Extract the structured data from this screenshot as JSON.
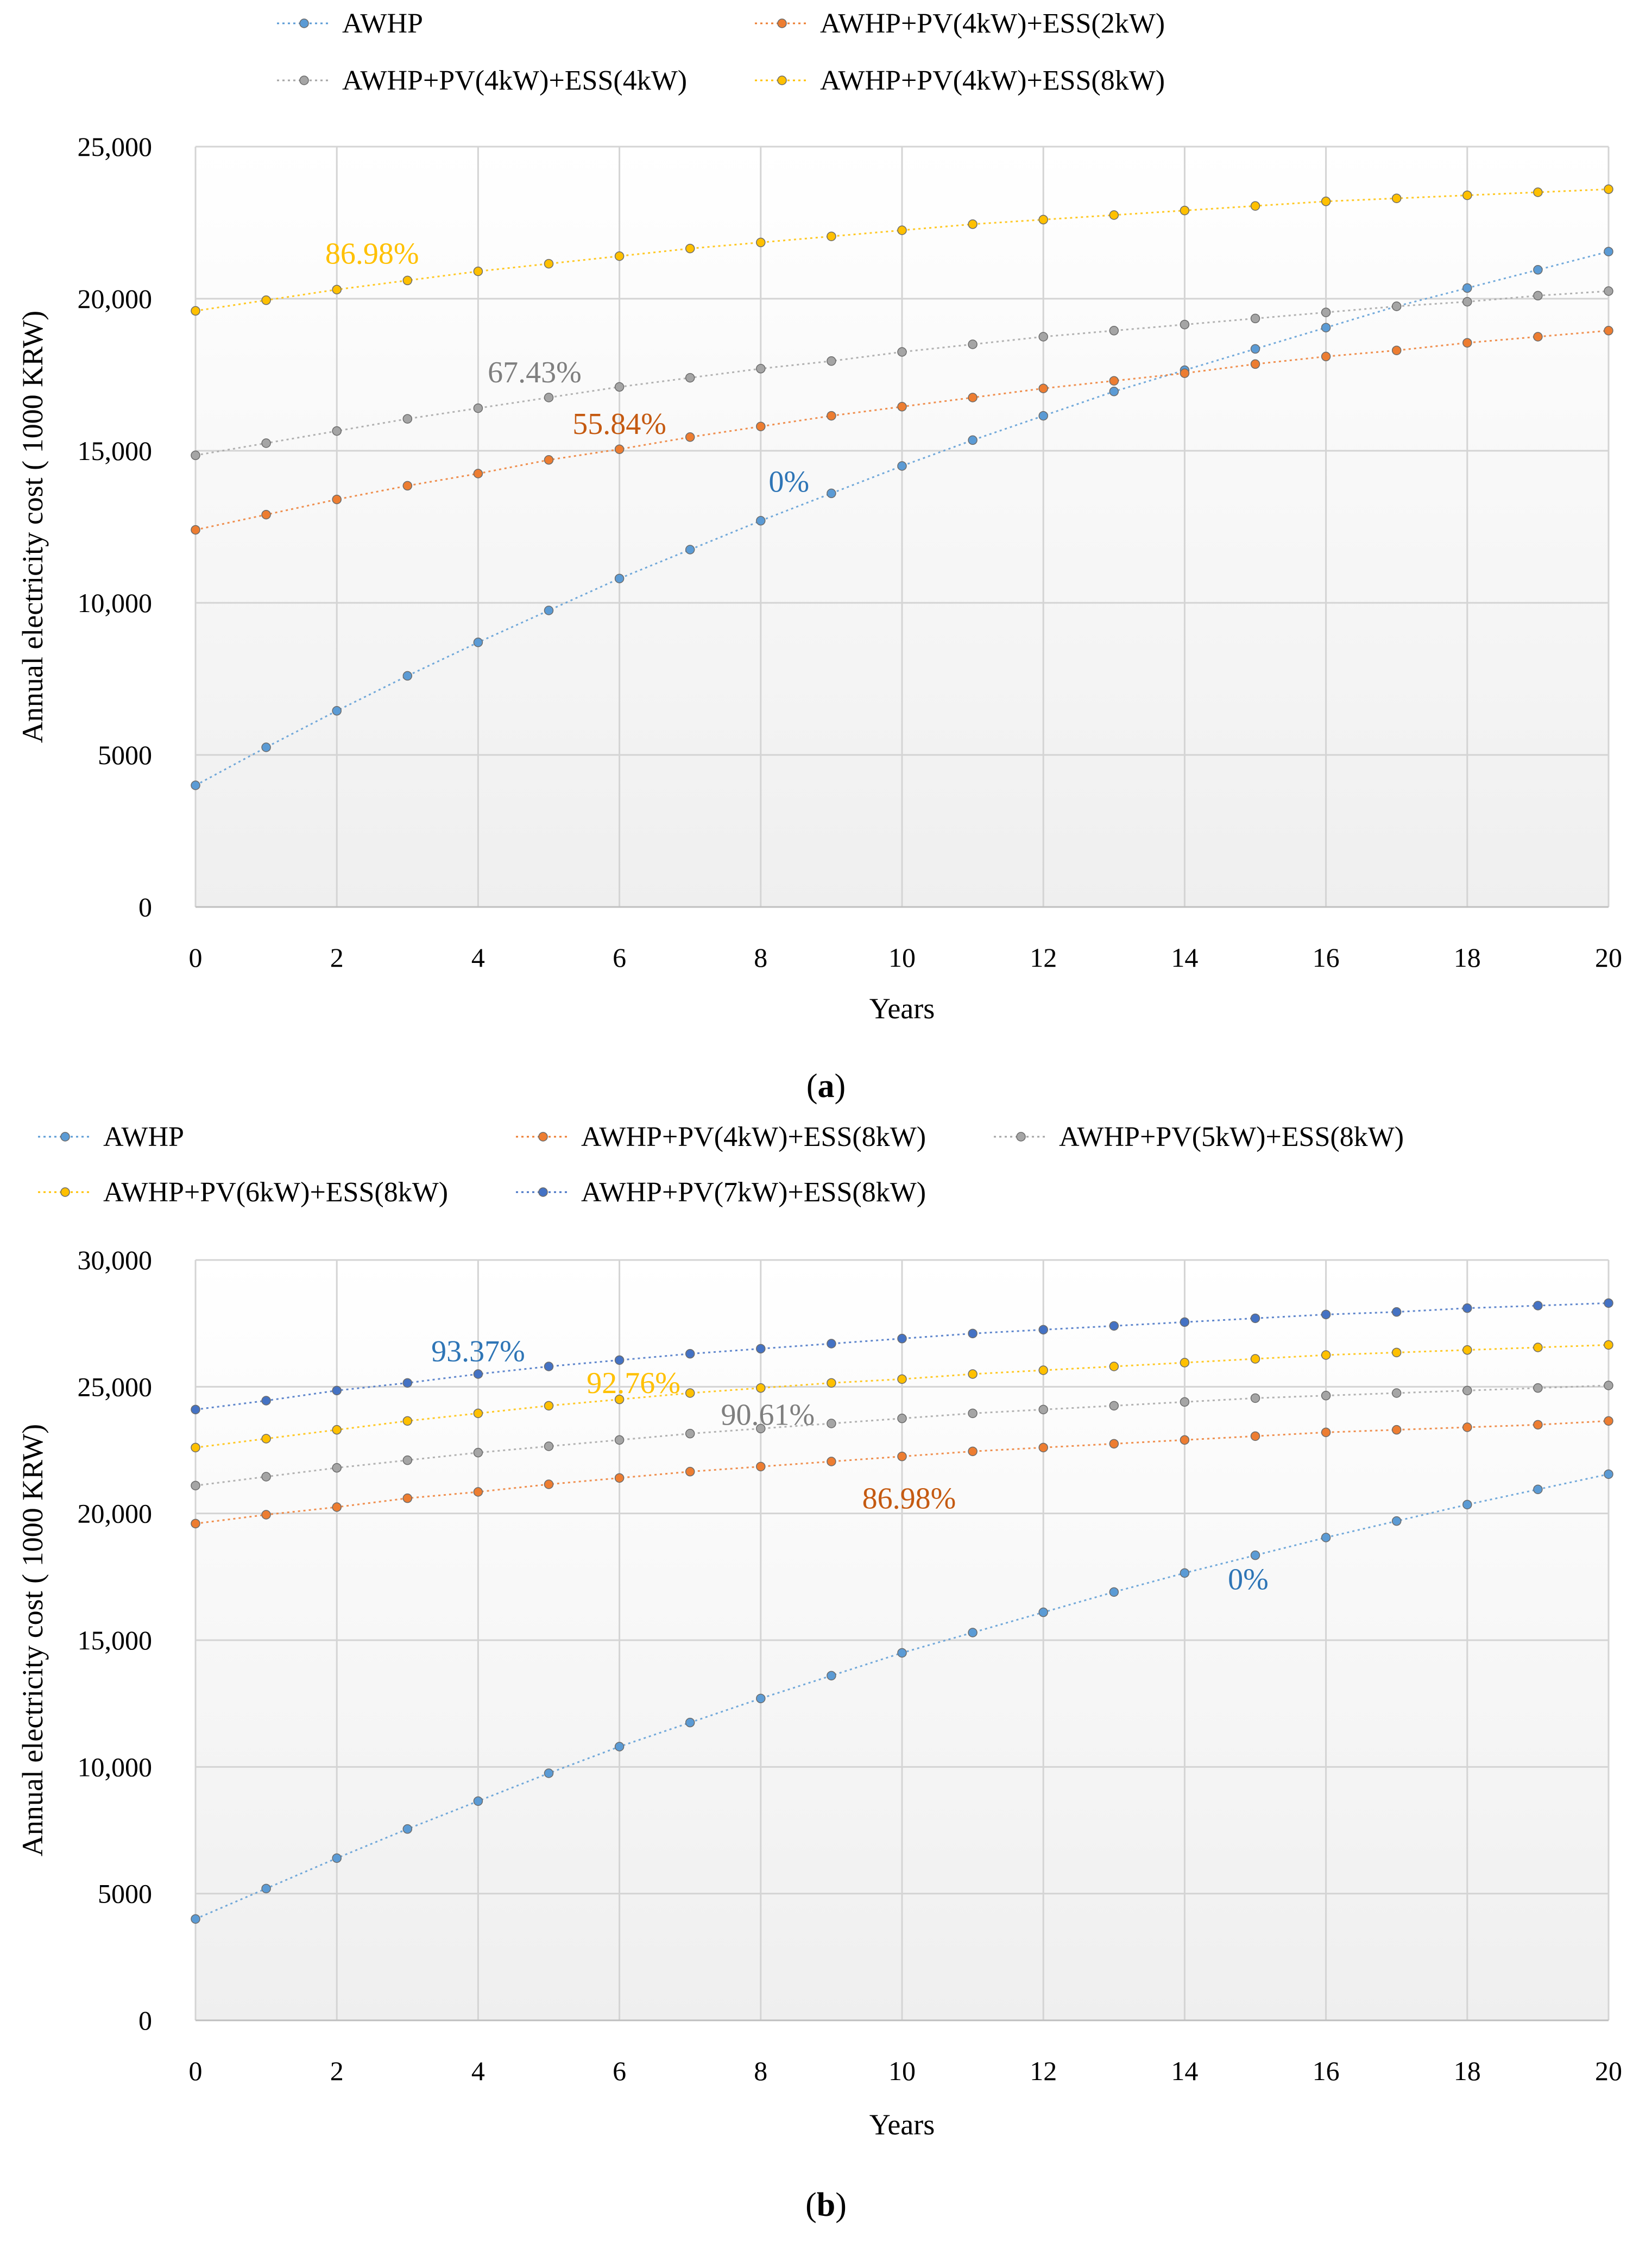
{
  "chart_data": [
    {
      "type": "line",
      "panel": "a",
      "caption_letter": "a",
      "xlabel": "Years",
      "ylabel": "Annual electricity cost ( 1000 KRW)",
      "xlim": [
        0,
        20
      ],
      "ylim": [
        0,
        25000
      ],
      "x_ticks": [
        0,
        2,
        4,
        6,
        8,
        10,
        12,
        14,
        16,
        18,
        20
      ],
      "y_ticks": [
        0,
        5000,
        10000,
        15000,
        20000,
        25000
      ],
      "y_tick_labels": [
        "0",
        "5000",
        "10,000",
        "15,000",
        "20,000",
        "25,000"
      ],
      "grid": true,
      "legend_position": "top",
      "x": [
        0,
        1,
        2,
        3,
        4,
        5,
        6,
        7,
        8,
        9,
        10,
        11,
        12,
        13,
        14,
        15,
        16,
        17,
        18,
        19,
        20
      ],
      "series": [
        {
          "name": "AWHP",
          "color": "#5B9BD5",
          "values": [
            4000,
            5250,
            6450,
            7600,
            8700,
            9750,
            10800,
            11750,
            12700,
            13600,
            14500,
            15350,
            16150,
            16950,
            17650,
            18350,
            19050,
            19750,
            20350,
            20950,
            21550
          ]
        },
        {
          "name": "AWHP+PV(4kW)+ESS(2kW)",
          "color": "#ED7D31",
          "values": [
            12400,
            12900,
            13400,
            13850,
            14250,
            14700,
            15050,
            15450,
            15800,
            16150,
            16450,
            16750,
            17050,
            17300,
            17550,
            17850,
            18100,
            18300,
            18550,
            18750,
            18950
          ]
        },
        {
          "name": "AWHP+PV(4kW)+ESS(4kW)",
          "color": "#A5A5A5",
          "values": [
            14850,
            15250,
            15650,
            16050,
            16400,
            16750,
            17100,
            17400,
            17700,
            17950,
            18250,
            18500,
            18750,
            18950,
            19150,
            19350,
            19550,
            19750,
            19900,
            20100,
            20250
          ]
        },
        {
          "name": "AWHP+PV(4kW)+ESS(8kW)",
          "color": "#FFC000",
          "values": [
            19600,
            19950,
            20300,
            20600,
            20900,
            21150,
            21400,
            21650,
            21850,
            22050,
            22250,
            22450,
            22600,
            22750,
            22900,
            23050,
            23200,
            23300,
            23400,
            23500,
            23600
          ]
        }
      ],
      "annotations": [
        {
          "text": "86.98%",
          "color": "#FFC000",
          "x": 2.5,
          "y": 21150
        },
        {
          "text": "67.43%",
          "color": "#7F7F7F",
          "x": 4.8,
          "y": 17250
        },
        {
          "text": "55.84%",
          "color": "#C55A11",
          "x": 6.0,
          "y": 15550
        },
        {
          "text": "0%",
          "color": "#2E75B6",
          "x": 8.4,
          "y": 13650
        }
      ]
    },
    {
      "type": "line",
      "panel": "b",
      "caption_letter": "b",
      "xlabel": "Years",
      "ylabel": "Annual electricity cost ( 1000 KRW)",
      "xlim": [
        0,
        20
      ],
      "ylim": [
        0,
        30000
      ],
      "x_ticks": [
        0,
        2,
        4,
        6,
        8,
        10,
        12,
        14,
        16,
        18,
        20
      ],
      "y_ticks": [
        0,
        5000,
        10000,
        15000,
        20000,
        25000,
        30000
      ],
      "y_tick_labels": [
        "0",
        "5000",
        "10,000",
        "15,000",
        "20,000",
        "25,000",
        "30,000"
      ],
      "grid": true,
      "legend_position": "top",
      "x": [
        0,
        1,
        2,
        3,
        4,
        5,
        6,
        7,
        8,
        9,
        10,
        11,
        12,
        13,
        14,
        15,
        16,
        17,
        18,
        19,
        20
      ],
      "series": [
        {
          "name": "AWHP",
          "color": "#5B9BD5",
          "values": [
            4000,
            5200,
            6400,
            7550,
            8650,
            9750,
            10800,
            11750,
            12700,
            13600,
            14500,
            15300,
            16100,
            16900,
            17650,
            18350,
            19050,
            19700,
            20350,
            20950,
            21550
          ]
        },
        {
          "name": "AWHP+PV(4kW)+ESS(8kW)",
          "color": "#ED7D31",
          "values": [
            19600,
            19950,
            20250,
            20600,
            20850,
            21150,
            21400,
            21650,
            21850,
            22050,
            22250,
            22450,
            22600,
            22750,
            22900,
            23050,
            23200,
            23300,
            23400,
            23500,
            23650
          ]
        },
        {
          "name": "AWHP+PV(5kW)+ESS(8kW)",
          "color": "#A5A5A5",
          "values": [
            21100,
            21450,
            21800,
            22100,
            22400,
            22650,
            22900,
            23150,
            23350,
            23550,
            23750,
            23950,
            24100,
            24250,
            24400,
            24550,
            24650,
            24750,
            24850,
            24950,
            25050
          ]
        },
        {
          "name": "AWHP+PV(6kW)+ESS(8kW)",
          "color": "#FFC000",
          "values": [
            22600,
            22950,
            23300,
            23650,
            23950,
            24250,
            24500,
            24750,
            24950,
            25150,
            25300,
            25500,
            25650,
            25800,
            25950,
            26100,
            26250,
            26350,
            26450,
            26550,
            26650
          ]
        },
        {
          "name": "AWHP+PV(7kW)+ESS(8kW)",
          "color": "#4472C4",
          "values": [
            24100,
            24450,
            24850,
            25150,
            25500,
            25800,
            26050,
            26300,
            26500,
            26700,
            26900,
            27100,
            27250,
            27400,
            27550,
            27700,
            27850,
            27950,
            28100,
            28200,
            28300
          ]
        }
      ],
      "annotations": [
        {
          "text": "93.37%",
          "color": "#2E75B6",
          "x": 4.0,
          "y": 26000
        },
        {
          "text": "92.76%",
          "color": "#FFC000",
          "x": 6.2,
          "y": 24750
        },
        {
          "text": "90.61%",
          "color": "#7F7F7F",
          "x": 8.1,
          "y": 23500
        },
        {
          "text": "86.98%",
          "color": "#C55A11",
          "x": 10.1,
          "y": 20200
        },
        {
          "text": "0%",
          "color": "#2E75B6",
          "x": 14.9,
          "y": 17000
        }
      ]
    }
  ]
}
